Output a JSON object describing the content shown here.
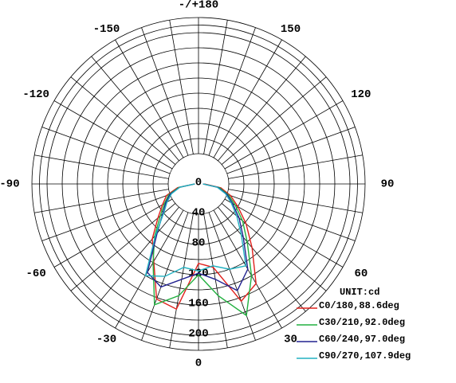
{
  "chart_data": {
    "type": "polar",
    "x": [
      -90,
      -80,
      -70,
      -60,
      -50,
      -40,
      -30,
      -20,
      -10,
      0,
      10,
      20,
      30,
      40,
      50,
      60,
      70,
      80,
      90
    ],
    "series": [
      {
        "name": "C0/180,88.6deg",
        "color": "#e0201c",
        "values": [
          5,
          28,
          45,
          55,
          70,
          95,
          118,
          162,
          168,
          105,
          112,
          165,
          152,
          110,
          82,
          60,
          45,
          30,
          8
        ]
      },
      {
        "name": "C30/210,92.0deg",
        "color": "#22b040",
        "values": [
          5,
          26,
          42,
          52,
          66,
          90,
          120,
          170,
          150,
          120,
          150,
          185,
          140,
          100,
          76,
          56,
          42,
          28,
          6
        ]
      },
      {
        "name": "C60/240,97.0deg",
        "color": "#22228f",
        "values": [
          5,
          25,
          40,
          50,
          62,
          85,
          135,
          145,
          128,
          118,
          128,
          150,
          130,
          92,
          70,
          52,
          40,
          26,
          6
        ]
      },
      {
        "name": "C90/270,107.9deg",
        "color": "#22b0c0",
        "values": [
          5,
          25,
          38,
          48,
          60,
          88,
          140,
          130,
          112,
          115,
          110,
          120,
          125,
          88,
          66,
          50,
          38,
          25,
          6
        ]
      }
    ],
    "rlim": [
      0,
      220
    ],
    "rticks": [
      0,
      40,
      80,
      120,
      160,
      200
    ],
    "angle_ticks": [
      {
        "value": 180,
        "label": "-/+180"
      },
      -150,
      -120,
      -90,
      -60,
      -30,
      0,
      30,
      60,
      90,
      120,
      150
    ],
    "unit_label": "UNIT:cd"
  }
}
